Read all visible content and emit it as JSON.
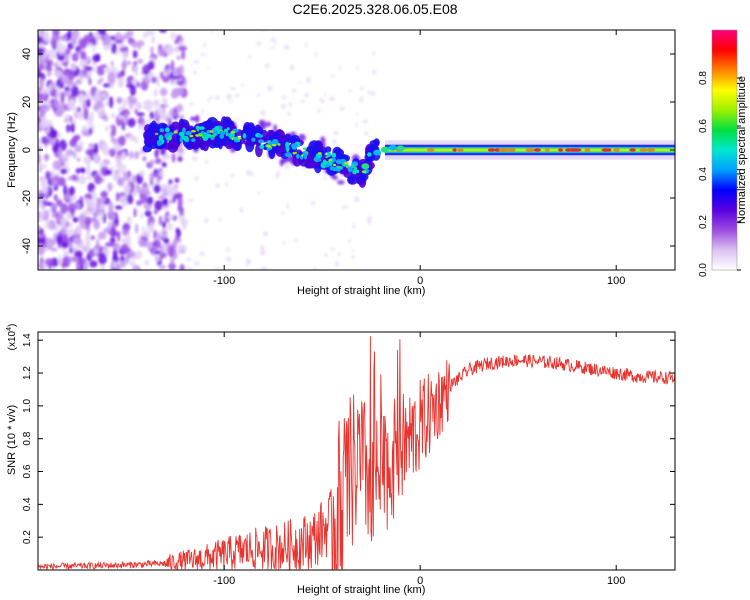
{
  "title": "C2E6.2025.328.06.05.E08",
  "chart_data": [
    {
      "type": "heatmap",
      "name": "spectrogram",
      "xlabel": "Height of straight line (km)",
      "ylabel": "Frequency (Hz)",
      "xlim": [
        -195,
        130
      ],
      "ylim": [
        -50,
        50
      ],
      "xticks": [
        -100,
        0,
        100
      ],
      "yticks": [
        -40,
        -20,
        0,
        20,
        40
      ],
      "colorbar": {
        "label": "Normalized spectral amplitude",
        "range": [
          0,
          1
        ],
        "ticks": [
          "0.0",
          "0.2",
          "0.4",
          "0.6",
          "0.8"
        ],
        "colors": [
          "#ffffff",
          "#dcc2f2",
          "#9b4be0",
          "#5a00e0",
          "#0000ff",
          "#00a0ff",
          "#00e8d0",
          "#00e040",
          "#a0f000",
          "#ffff00",
          "#ff8000",
          "#ff0000",
          "#ff0080"
        ]
      },
      "carrier_track": [
        {
          "x": -140,
          "y": 5
        },
        {
          "x": -120,
          "y": 6
        },
        {
          "x": -100,
          "y": 7
        },
        {
          "x": -80,
          "y": 4
        },
        {
          "x": -60,
          "y": -1
        },
        {
          "x": -40,
          "y": -6
        },
        {
          "x": -30,
          "y": -10
        },
        {
          "x": -25,
          "y": -2
        },
        {
          "x": -15,
          "y": 1
        },
        {
          "x": 0,
          "y": 0
        },
        {
          "x": 50,
          "y": 0
        },
        {
          "x": 100,
          "y": 0
        },
        {
          "x": 130,
          "y": 0
        }
      ]
    },
    {
      "type": "line",
      "name": "snr",
      "xlabel": "Height of straight line (km)",
      "ylabel": "SNR (10 * v/v)",
      "multiplier": "(x10",
      "multiplier_exp": "4",
      "xlim": [
        -195,
        130
      ],
      "ylim": [
        0,
        1.45
      ],
      "xticks": [
        -100,
        0,
        100
      ],
      "yticks": [
        "0.2",
        "0.4",
        "0.6",
        "0.8",
        "1.0",
        "1.2",
        "1.4"
      ],
      "color": "#e8332e",
      "envelope": [
        {
          "x": -195,
          "y": 0.02
        },
        {
          "x": -150,
          "y": 0.03
        },
        {
          "x": -130,
          "y": 0.04
        },
        {
          "x": -110,
          "y": 0.07
        },
        {
          "x": -90,
          "y": 0.12
        },
        {
          "x": -70,
          "y": 0.14
        },
        {
          "x": -55,
          "y": 0.18
        },
        {
          "x": -45,
          "y": 0.3
        },
        {
          "x": -38,
          "y": 0.5
        },
        {
          "x": -32,
          "y": 0.65
        },
        {
          "x": -25,
          "y": 0.55
        },
        {
          "x": -18,
          "y": 0.6
        },
        {
          "x": -12,
          "y": 0.7
        },
        {
          "x": -5,
          "y": 0.8
        },
        {
          "x": 5,
          "y": 0.95
        },
        {
          "x": 15,
          "y": 1.12
        },
        {
          "x": 25,
          "y": 1.22
        },
        {
          "x": 35,
          "y": 1.26
        },
        {
          "x": 50,
          "y": 1.28
        },
        {
          "x": 70,
          "y": 1.26
        },
        {
          "x": 90,
          "y": 1.22
        },
        {
          "x": 110,
          "y": 1.18
        },
        {
          "x": 130,
          "y": 1.17
        }
      ]
    }
  ]
}
